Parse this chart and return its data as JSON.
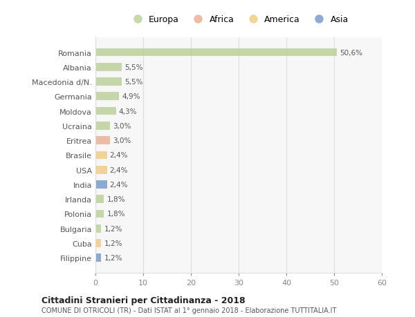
{
  "categories": [
    "Romania",
    "Albania",
    "Macedonia d/N.",
    "Germania",
    "Moldova",
    "Ucraina",
    "Eritrea",
    "Brasile",
    "USA",
    "India",
    "Irlanda",
    "Polonia",
    "Bulgaria",
    "Cuba",
    "Filippine"
  ],
  "values": [
    50.6,
    5.5,
    5.5,
    4.9,
    4.3,
    3.0,
    3.0,
    2.4,
    2.4,
    2.4,
    1.8,
    1.8,
    1.2,
    1.2,
    1.2
  ],
  "labels": [
    "50,6%",
    "5,5%",
    "5,5%",
    "4,9%",
    "4,3%",
    "3,0%",
    "3,0%",
    "2,4%",
    "2,4%",
    "2,4%",
    "1,8%",
    "1,8%",
    "1,2%",
    "1,2%",
    "1,2%"
  ],
  "colors": [
    "#b5cc8e",
    "#b5cc8e",
    "#b5cc8e",
    "#b5cc8e",
    "#b5cc8e",
    "#b5cc8e",
    "#e8a98a",
    "#f0c87a",
    "#f0c87a",
    "#6b8fc4",
    "#b5cc8e",
    "#b5cc8e",
    "#b5cc8e",
    "#f0c87a",
    "#6b8fc4"
  ],
  "legend_labels": [
    "Europa",
    "Africa",
    "America",
    "Asia"
  ],
  "legend_colors": [
    "#b5cc8e",
    "#e8a98a",
    "#f0c87a",
    "#6b8fc4"
  ],
  "xlim": [
    0,
    60
  ],
  "xticks": [
    0,
    10,
    20,
    30,
    40,
    50,
    60
  ],
  "title": "Cittadini Stranieri per Cittadinanza - 2018",
  "subtitle": "COMUNE DI OTRICOLI (TR) - Dati ISTAT al 1° gennaio 2018 - Elaborazione TUTTITALIA.IT",
  "bg_color": "#ffffff",
  "plot_bg_color": "#f7f7f7",
  "bar_alpha": 0.75,
  "grid_color": "#dddddd",
  "label_color": "#555555",
  "tick_color": "#888888"
}
